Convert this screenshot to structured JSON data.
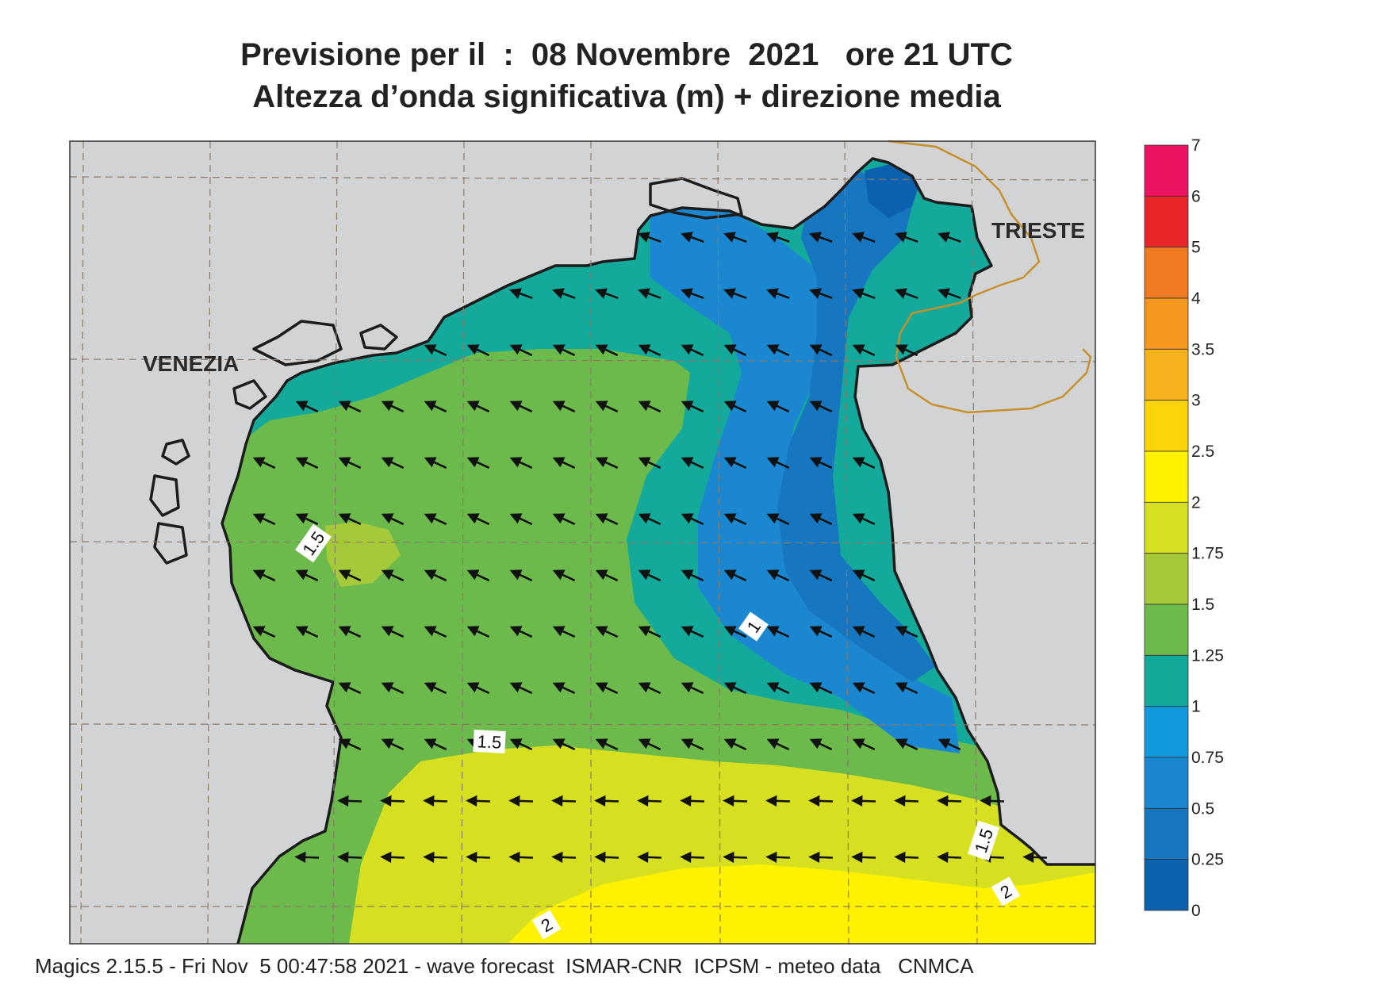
{
  "header": {
    "line1": "Previsione per il  :  08 Novembre  2021   ore 21 UTC",
    "line2": "Altezza d’onda significativa (m) + direzione media"
  },
  "map": {
    "cities": [
      {
        "name": "VENEZIA"
      },
      {
        "name": "TRIESTE"
      }
    ],
    "contour_labels": [
      "1.5",
      "1",
      "1.5",
      "1.5",
      "2",
      "2"
    ],
    "mean_wave_direction": "from east-northeast (arrows pointing west-southwest)",
    "colors": {
      "land": "#d2d3d5",
      "coast": "#1c1c1c",
      "border": "#c8902a",
      "gridline": "#8a7a6a"
    }
  },
  "legend": {
    "labels": [
      "7",
      "6",
      "5",
      "4",
      "3.5",
      "3",
      "2.5",
      "2",
      "1.75",
      "1.5",
      "1.25",
      "1",
      "0.75",
      "0.5",
      "0.25",
      "0"
    ],
    "colors": [
      "#ec1462",
      "#e8262a",
      "#f07a22",
      "#f5961f",
      "#f6b21c",
      "#fcd40a",
      "#fef200",
      "#d6e020",
      "#a6c93a",
      "#6dba4c",
      "#13aa9c",
      "#1199de",
      "#1b87d0",
      "#1677c0",
      "#0b61ae"
    ]
  },
  "footer": {
    "text": "Magics 2.15.5 - Fri Nov  5 00:47:58 2021 - wave forecast  ISMAR-CNR  ICPSM - meteo data   CNMCA"
  }
}
